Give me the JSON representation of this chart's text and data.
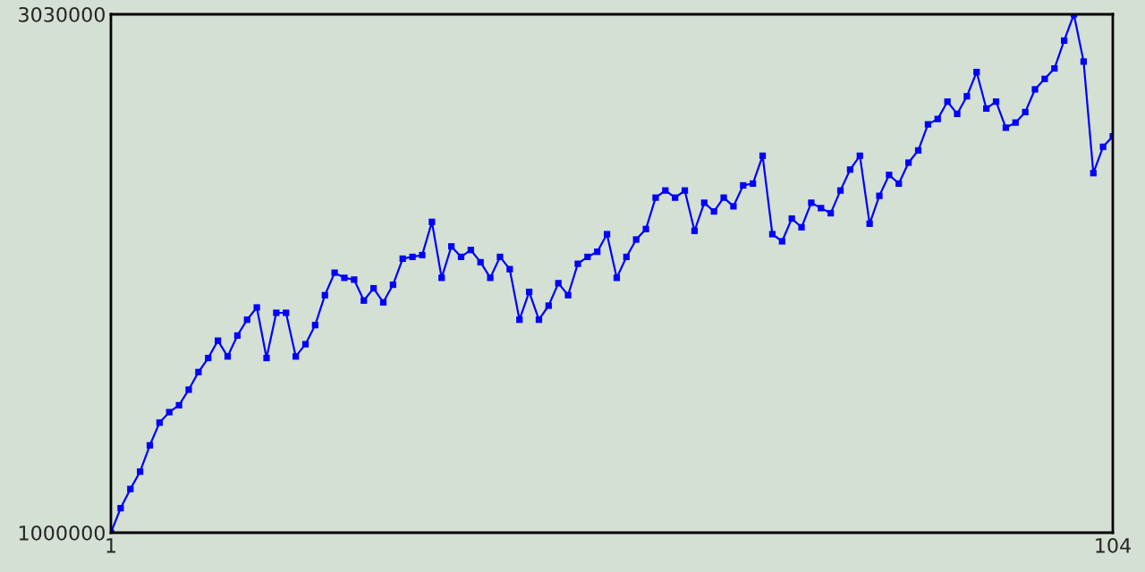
{
  "chart_data": {
    "type": "line",
    "x": [
      1,
      2,
      3,
      4,
      5,
      6,
      7,
      8,
      9,
      10,
      11,
      12,
      13,
      14,
      15,
      16,
      17,
      18,
      19,
      20,
      21,
      22,
      23,
      24,
      25,
      26,
      27,
      28,
      29,
      30,
      31,
      32,
      33,
      34,
      35,
      36,
      37,
      38,
      39,
      40,
      41,
      42,
      43,
      44,
      45,
      46,
      47,
      48,
      49,
      50,
      51,
      52,
      53,
      54,
      55,
      56,
      57,
      58,
      59,
      60,
      61,
      62,
      63,
      64,
      65,
      66,
      67,
      68,
      69,
      70,
      71,
      72,
      73,
      74,
      75,
      76,
      77,
      78,
      79,
      80,
      81,
      82,
      83,
      84,
      85,
      86,
      87,
      88,
      89,
      90,
      91,
      92,
      93,
      94,
      95,
      96,
      97,
      98,
      99,
      100,
      101,
      102,
      103,
      104
    ],
    "series": [
      {
        "color": "#0000ff",
        "values": [
          1000000,
          1096000,
          1171000,
          1239000,
          1342000,
          1431000,
          1472000,
          1499000,
          1560000,
          1629000,
          1684000,
          1752000,
          1690000,
          1772000,
          1834000,
          1882000,
          1684000,
          1861000,
          1861000,
          1690000,
          1738000,
          1813000,
          1930000,
          2018000,
          1998000,
          1991000,
          1909000,
          1957000,
          1902000,
          1971000,
          2073000,
          2080000,
          2087000,
          2217000,
          1998000,
          2121000,
          2080000,
          2107000,
          2059000,
          1998000,
          2080000,
          2032000,
          1834000,
          1943000,
          1834000,
          1889000,
          1977000,
          1930000,
          2053000,
          2080000,
          2100000,
          2169000,
          1998000,
          2080000,
          2148000,
          2189000,
          2312000,
          2340000,
          2312000,
          2340000,
          2182000,
          2292000,
          2258000,
          2312000,
          2278000,
          2360000,
          2367000,
          2476000,
          2169000,
          2141000,
          2230000,
          2196000,
          2292000,
          2271000,
          2251000,
          2340000,
          2422000,
          2476000,
          2210000,
          2319000,
          2401000,
          2367000,
          2449000,
          2497000,
          2599000,
          2620000,
          2688000,
          2640000,
          2709000,
          2804000,
          2661000,
          2688000,
          2586000,
          2606000,
          2647000,
          2736000,
          2777000,
          2818000,
          2927000,
          3030000,
          2845000,
          2408000,
          2511000,
          2552000
        ]
      }
    ],
    "xlim": [
      1,
      104
    ],
    "ylim": [
      1000000,
      3030000
    ],
    "xticks": [
      1,
      104
    ],
    "yticks": [
      1000000,
      3030000
    ],
    "marker": "square",
    "line_style": "solid",
    "legend": false
  }
}
